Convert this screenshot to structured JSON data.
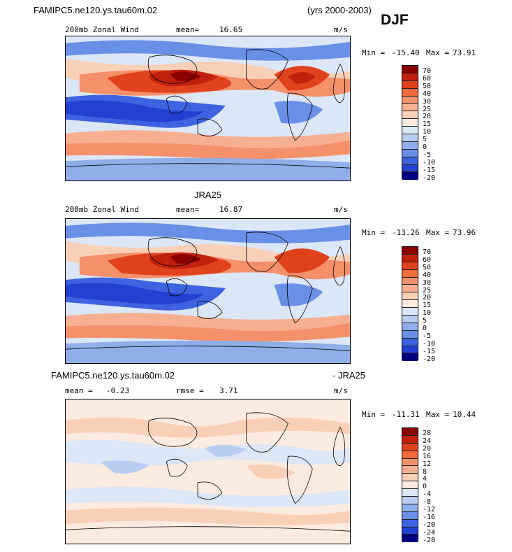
{
  "header": {
    "model_title": "FAMIPC5.ne120.ys.tau60m.02",
    "years": "(yrs 2000-2003)",
    "season": "DJF"
  },
  "panels": [
    {
      "id": "model",
      "title": "",
      "field_label": "200mb Zonal Wind",
      "stat_label": "mean=",
      "stat_value": "16.65",
      "units": "m/s",
      "min_label": "Min =",
      "min_value": "-15.40",
      "max_label": "Max =",
      "max_value": "73.91",
      "colorbar_labels": [
        "70",
        "60",
        "50",
        "40",
        "30",
        "25",
        "20",
        "15",
        "10",
        "5",
        "0",
        "-5",
        "-10",
        "-15",
        "-20"
      ]
    },
    {
      "id": "obs",
      "title": "JRA25",
      "field_label": "200mb Zonal Wind",
      "stat_label": "mean=",
      "stat_value": "16.87",
      "units": "m/s",
      "min_label": "Min =",
      "min_value": "-13.26",
      "max_label": "Max =",
      "max_value": "73.96",
      "colorbar_labels": [
        "70",
        "60",
        "50",
        "40",
        "30",
        "25",
        "20",
        "15",
        "10",
        "5",
        "0",
        "-5",
        "-10",
        "-15",
        "-20"
      ]
    },
    {
      "id": "diff",
      "title_left": "FAMIPC5.ne120.ys.tau60m.02",
      "title_right": "- JRA25",
      "mean_label": "mean =",
      "mean_value": "-0.23",
      "rmse_label": "rmse =",
      "rmse_value": "3.71",
      "units": "m/s",
      "min_label": "Min =",
      "min_value": "-11.31",
      "max_label": "Max =",
      "max_value": "10.44",
      "colorbar_labels": [
        "28",
        "24",
        "20",
        "16",
        "12",
        "8",
        "4",
        "0",
        "-4",
        "-8",
        "-12",
        "-16",
        "-20",
        "-24",
        "-28"
      ]
    }
  ],
  "colors": {
    "scale": [
      "#8b0000",
      "#c2200e",
      "#e0421d",
      "#f06a3c",
      "#f4906a",
      "#f6b091",
      "#f8d0b8",
      "#fbeadf",
      "#dbe6f6",
      "#b9cdf1",
      "#90aeea",
      "#6a8fe6",
      "#3e63e0",
      "#2340d3",
      "#15219f",
      "#00007f"
    ],
    "land_outline": "#000000"
  }
}
